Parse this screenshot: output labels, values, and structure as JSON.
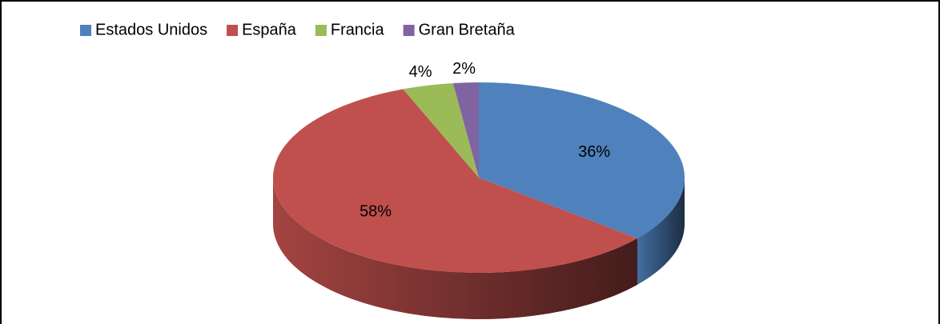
{
  "chart_data": {
    "type": "pie",
    "categories": [
      "Estados Unidos",
      "España",
      "Francia",
      "Gran Bretaña"
    ],
    "values": [
      36,
      58,
      4,
      2
    ],
    "value_labels": [
      "36%",
      "58%",
      "4%",
      "2%"
    ],
    "colors": [
      "#4f81bd",
      "#c0504d",
      "#9bbb59",
      "#8064a2"
    ],
    "legend": "top"
  }
}
